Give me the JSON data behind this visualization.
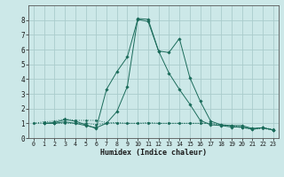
{
  "xlabel": "Humidex (Indice chaleur)",
  "bg_color": "#cce8e8",
  "grid_color": "#aacccc",
  "line_color": "#1a6b5a",
  "xlim": [
    -0.5,
    23.5
  ],
  "ylim": [
    0,
    9
  ],
  "xticks": [
    0,
    1,
    2,
    3,
    4,
    5,
    6,
    7,
    8,
    9,
    10,
    11,
    12,
    13,
    14,
    15,
    16,
    17,
    18,
    19,
    20,
    21,
    22,
    23
  ],
  "yticks": [
    0,
    1,
    2,
    3,
    4,
    5,
    6,
    7,
    8
  ],
  "series": [
    {
      "x": [
        0,
        1,
        2,
        3,
        4,
        5,
        6,
        7,
        8,
        9,
        10,
        11,
        12,
        13,
        14,
        15,
        16,
        17,
        18,
        19,
        20,
        21,
        22,
        23
      ],
      "y": [
        1.0,
        1.1,
        1.15,
        1.3,
        1.2,
        1.2,
        1.2,
        1.05,
        1.05,
        1.0,
        1.0,
        1.05,
        1.0,
        1.0,
        1.0,
        1.0,
        1.0,
        1.0,
        0.9,
        0.85,
        0.75,
        0.65,
        0.7,
        0.6
      ],
      "dotted": true,
      "marker": false
    },
    {
      "x": [
        0,
        1,
        2,
        3,
        4,
        5,
        6,
        7,
        8,
        9,
        10,
        11,
        12,
        13,
        14,
        15,
        16,
        17,
        18,
        19,
        20,
        21,
        22,
        23
      ],
      "y": [
        1.0,
        1.0,
        1.0,
        1.0,
        1.0,
        1.0,
        0.9,
        1.0,
        1.0,
        1.0,
        1.0,
        1.0,
        1.0,
        1.0,
        1.0,
        1.0,
        1.0,
        1.0,
        0.85,
        0.8,
        0.7,
        0.6,
        0.65,
        0.55
      ],
      "dotted": true,
      "marker": false
    },
    {
      "x": [
        1,
        2,
        3,
        4,
        5,
        6,
        7,
        8,
        9,
        10,
        11,
        12,
        13,
        14,
        15,
        16,
        17,
        18,
        19,
        20,
        21,
        22,
        23
      ],
      "y": [
        1.0,
        1.05,
        1.25,
        1.15,
        0.9,
        0.65,
        3.3,
        4.5,
        5.5,
        8.05,
        7.9,
        5.9,
        5.8,
        6.75,
        4.1,
        2.5,
        1.15,
        0.9,
        0.85,
        0.85,
        0.65,
        0.7,
        0.55
      ],
      "dotted": false,
      "marker": true
    },
    {
      "x": [
        1,
        2,
        3,
        4,
        5,
        6,
        7,
        8,
        9,
        10,
        11,
        12,
        13,
        14,
        15,
        16,
        17,
        18,
        19,
        20,
        21,
        22,
        23
      ],
      "y": [
        1.0,
        1.0,
        1.1,
        1.0,
        0.85,
        0.7,
        1.0,
        1.8,
        3.5,
        8.1,
        8.05,
        5.9,
        4.4,
        3.3,
        2.3,
        1.2,
        0.9,
        0.85,
        0.75,
        0.75,
        0.6,
        0.7,
        0.55
      ],
      "dotted": false,
      "marker": true
    }
  ]
}
